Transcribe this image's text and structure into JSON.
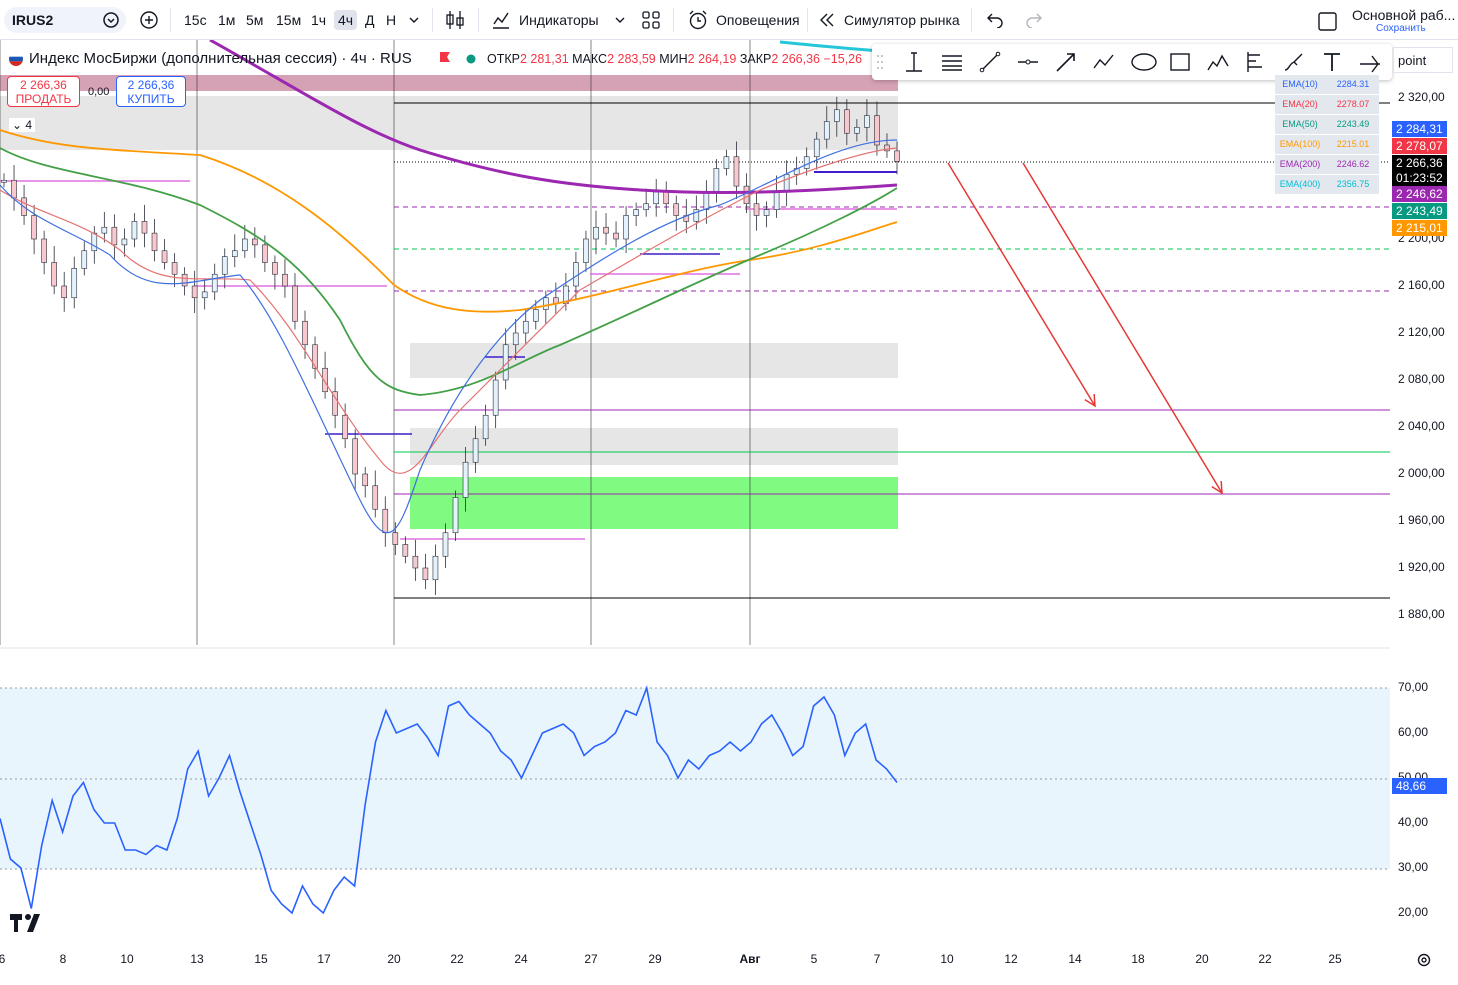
{
  "toolbar": {
    "symbol": "IRUS2",
    "intervals": [
      "15с",
      "1м",
      "5м",
      "15м",
      "1ч",
      "4ч",
      "Д",
      "Н"
    ],
    "active_interval": "4ч",
    "indicators": "Индикаторы",
    "alerts": "Оповещения",
    "replay": "Симулятор рынка",
    "layout_name": "Основной раб...",
    "save": "Сохранить"
  },
  "legend": {
    "title": "Индекс МосБиржи (дополнительная сессия) · 4ч · RUS",
    "open_label": "ОТКР",
    "open": "2 281,31",
    "high_label": "МАКС",
    "high": "2 283,59",
    "low_label": "МИН",
    "low": "2 264,19",
    "close_label": "ЗАКР",
    "close": "2 266,36",
    "change": "−15,26",
    "sell_price": "2 266,36",
    "sell_label": "ПРОДАТЬ",
    "buy_price": "2 266,36",
    "buy_label": "КУПИТЬ",
    "spread": "0,00",
    "collapsed_count": "4"
  },
  "point_field": "point",
  "ema_table": [
    {
      "name": "EMA(10)",
      "value": "2284.31",
      "color": "#2962ff"
    },
    {
      "name": "EMA(20)",
      "value": "2278.07",
      "color": "#f23645"
    },
    {
      "name": "EMA(50)",
      "value": "2243.49",
      "color": "#089981"
    },
    {
      "name": "EMA(100)",
      "value": "2215.01",
      "color": "#ff9800"
    },
    {
      "name": "EMA(200)",
      "value": "2246.62",
      "color": "#9c27b0"
    },
    {
      "name": "EMA(400)",
      "value": "2356.75",
      "color": "#00bcd4"
    }
  ],
  "price_labels": [
    {
      "text": "2 284,31",
      "color": "#2962ff"
    },
    {
      "text": "2 278,07",
      "color": "#f23645"
    },
    {
      "text": "2 266,36",
      "color": "#000000"
    },
    {
      "text": "01:23:52",
      "color": "#000000"
    },
    {
      "text": "2 246,62",
      "color": "#9c27b0"
    },
    {
      "text": "2 243,49",
      "color": "#089981"
    },
    {
      "text": "2 215,01",
      "color": "#ff9800"
    }
  ],
  "price_axis": [
    "2 320,00",
    "2 200,00",
    "2 160,00",
    "2 120,00",
    "2 080,00",
    "2 040,00",
    "2 000,00",
    "1 960,00",
    "1 920,00",
    "1 880,00"
  ],
  "rsi_axis": [
    "70,00",
    "60,00",
    "50,00",
    "40,00",
    "30,00",
    "20,00"
  ],
  "rsi_current": "48,66",
  "date_axis": [
    "6",
    "8",
    "10",
    "13",
    "15",
    "17",
    "20",
    "22",
    "24",
    "27",
    "29",
    "Авг",
    "5",
    "7",
    "10",
    "12",
    "14",
    "18",
    "20",
    "22",
    "25"
  ]
}
